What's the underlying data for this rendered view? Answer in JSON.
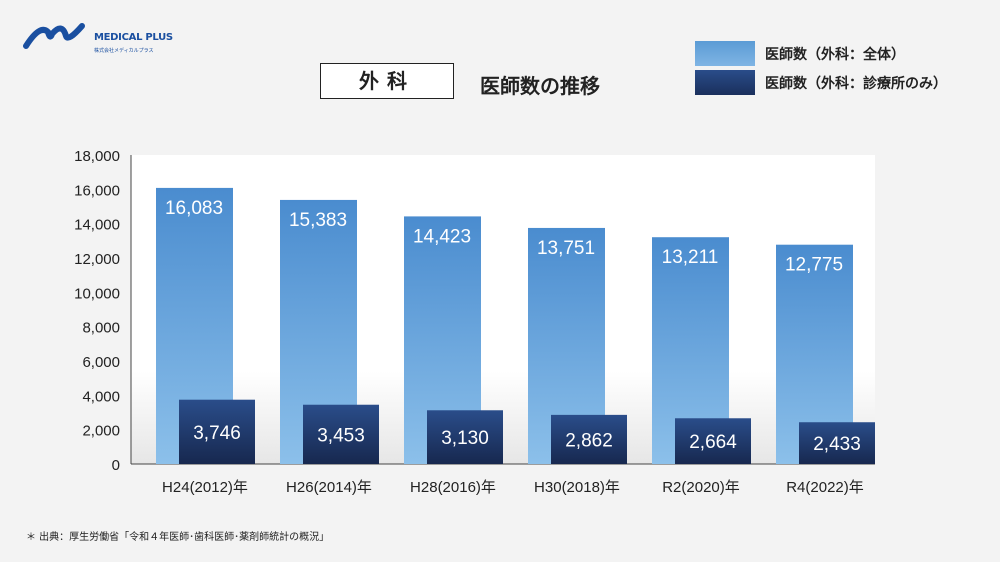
{
  "logo": {
    "name": "MEDICAL PLUS",
    "sub": "株式会社メディカルプラス"
  },
  "title_box": "外科",
  "subtitle": "医師数の推移",
  "source": "＊ 出典：厚生労働省「令和４年医師･歯科医師･薬剤師統計の概況」",
  "colors": {
    "all": "#5b9bd5",
    "clinic": "#1f3a6e",
    "bg": "#f3f3f3"
  },
  "chart_data": {
    "type": "bar",
    "title": "外科 医師数の推移",
    "categories": [
      "H24(2012)年",
      "H26(2014)年",
      "H28(2016)年",
      "H30(2018)年",
      "R2(2020)年",
      "R4(2022)年"
    ],
    "series": [
      {
        "name": "医師数（外科：全体）",
        "values": [
          16083,
          15383,
          14423,
          13751,
          13211,
          12775
        ],
        "labels": [
          "16,083",
          "15,383",
          "14,423",
          "13,751",
          "13,211",
          "12,775"
        ]
      },
      {
        "name": "医師数（外科：診療所のみ）",
        "values": [
          3746,
          3453,
          3130,
          2862,
          2664,
          2433
        ],
        "labels": [
          "3,746",
          "3,453",
          "3,130",
          "2,862",
          "2,664",
          "2,433"
        ]
      }
    ],
    "ylim": [
      0,
      18000
    ],
    "yticks": [
      0,
      2000,
      4000,
      6000,
      8000,
      10000,
      12000,
      14000,
      16000,
      18000
    ],
    "ytick_labels": [
      "0",
      "2,000",
      "4,000",
      "6,000",
      "8,000",
      "10,000",
      "12,000",
      "14,000",
      "16,000",
      "18,000"
    ],
    "grid": false,
    "legend": "top-right"
  }
}
